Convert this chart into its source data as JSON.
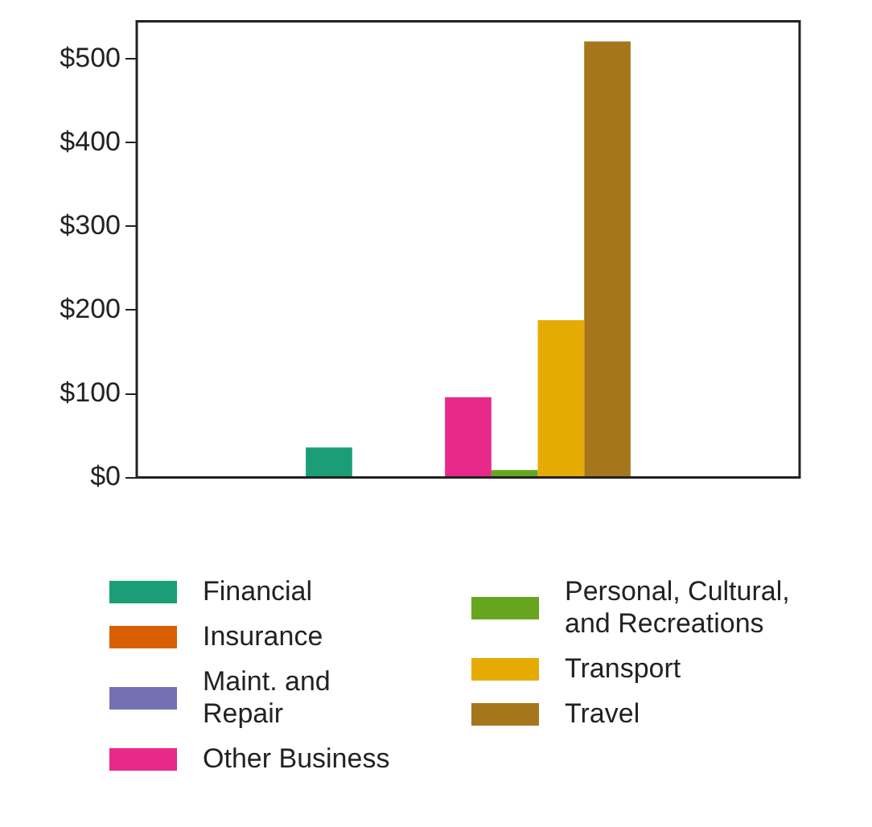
{
  "chart_data": {
    "type": "bar",
    "categories": [
      null
    ],
    "series": [
      {
        "name": "Financial",
        "color": "#1b9e77",
        "values": [
          36
        ]
      },
      {
        "name": "Insurance",
        "color": "#d95f02",
        "values": [
          0
        ]
      },
      {
        "name": "Maint. and Repair",
        "color": "#7570b3",
        "values": [
          0
        ]
      },
      {
        "name": "Other Business",
        "color": "#e7298a",
        "values": [
          96
        ]
      },
      {
        "name": "Personal, Cultural, and Recreations",
        "color": "#66a61e",
        "values": [
          9
        ]
      },
      {
        "name": "Transport",
        "color": "#e6ab02",
        "values": [
          188
        ]
      },
      {
        "name": "Travel",
        "color": "#a6761d",
        "values": [
          521
        ]
      }
    ],
    "ylim": [
      0,
      545
    ],
    "yticks": [
      {
        "value": 0,
        "label": "$0"
      },
      {
        "value": 100,
        "label": "$100"
      },
      {
        "value": 200,
        "label": "$200"
      },
      {
        "value": 300,
        "label": "$300"
      },
      {
        "value": 400,
        "label": "$400"
      },
      {
        "value": 500,
        "label": "$500"
      }
    ],
    "grid": false,
    "legend": "bottom"
  }
}
